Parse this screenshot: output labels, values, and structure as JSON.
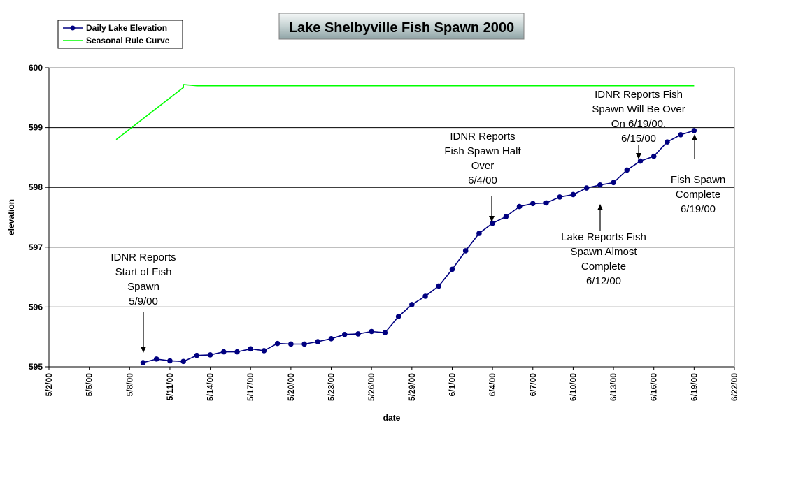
{
  "chart_data": {
    "type": "line",
    "title": "Lake Shelbyville Fish Spawn 2000",
    "xlabel": "date",
    "ylabel": "elevation",
    "ylim": [
      595,
      600
    ],
    "y_ticks": [
      "595",
      "596",
      "597",
      "598",
      "599",
      "600"
    ],
    "x_ticks": [
      "5/2/00",
      "5/5/00",
      "5/8/00",
      "5/11/00",
      "5/14/00",
      "5/17/00",
      "5/20/00",
      "5/23/00",
      "5/26/00",
      "5/29/00",
      "6/1/00",
      "6/4/00",
      "6/7/00",
      "6/10/00",
      "6/13/00",
      "6/16/00",
      "6/19/00",
      "6/22/00"
    ],
    "grid": "horizontal",
    "legend_position": "top-left",
    "series": [
      {
        "name": "Daily Lake Elevation",
        "color": "#000080",
        "marker": "circle",
        "x": [
          "5/9/00",
          "5/10/00",
          "5/11/00",
          "5/12/00",
          "5/13/00",
          "5/14/00",
          "5/15/00",
          "5/16/00",
          "5/17/00",
          "5/18/00",
          "5/19/00",
          "5/20/00",
          "5/21/00",
          "5/22/00",
          "5/23/00",
          "5/24/00",
          "5/25/00",
          "5/26/00",
          "5/27/00",
          "5/28/00",
          "5/29/00",
          "5/30/00",
          "5/31/00",
          "6/1/00",
          "6/2/00",
          "6/3/00",
          "6/4/00",
          "6/5/00",
          "6/6/00",
          "6/7/00",
          "6/8/00",
          "6/9/00",
          "6/10/00",
          "6/11/00",
          "6/12/00",
          "6/13/00",
          "6/14/00",
          "6/15/00",
          "6/16/00",
          "6/17/00",
          "6/18/00",
          "6/19/00"
        ],
        "values": [
          595.07,
          595.13,
          595.1,
          595.09,
          595.19,
          595.2,
          595.25,
          595.25,
          595.3,
          595.27,
          595.39,
          595.38,
          595.38,
          595.42,
          595.47,
          595.54,
          595.55,
          595.59,
          595.57,
          595.84,
          596.04,
          596.18,
          596.35,
          596.63,
          596.94,
          597.23,
          597.4,
          597.51,
          597.68,
          597.73,
          597.74,
          597.84,
          597.88,
          597.99,
          598.04,
          598.08,
          598.29,
          598.44,
          598.52,
          598.76,
          598.88,
          598.95
        ]
      },
      {
        "name": "Seasonal Rule Curve",
        "color": "#00ff00",
        "marker": "none",
        "x": [
          "5/7/00",
          "5/12/00",
          "5/12/00",
          "5/13/00",
          "6/19/00"
        ],
        "values": [
          598.8,
          599.67,
          599.72,
          599.7,
          599.7
        ]
      }
    ],
    "annotations": [
      {
        "name": "annot-start",
        "lines": [
          "IDNR Reports",
          "Start of Fish",
          "Spawn",
          "5/9/00"
        ]
      },
      {
        "name": "annot-half",
        "lines": [
          "IDNR Reports",
          "Fish Spawn  Half",
          "Over",
          "6/4/00"
        ]
      },
      {
        "name": "annot-almost",
        "lines": [
          "Lake Reports Fish",
          "Spawn Almost",
          "Complete",
          "6/12/00"
        ]
      },
      {
        "name": "annot-over",
        "lines": [
          "IDNR Reports Fish",
          "Spawn Will Be Over",
          "On 6/19/00.",
          "6/15/00"
        ]
      },
      {
        "name": "annot-complete",
        "lines": [
          "Fish Spawn",
          "Complete",
          "6/19/00"
        ]
      }
    ]
  }
}
